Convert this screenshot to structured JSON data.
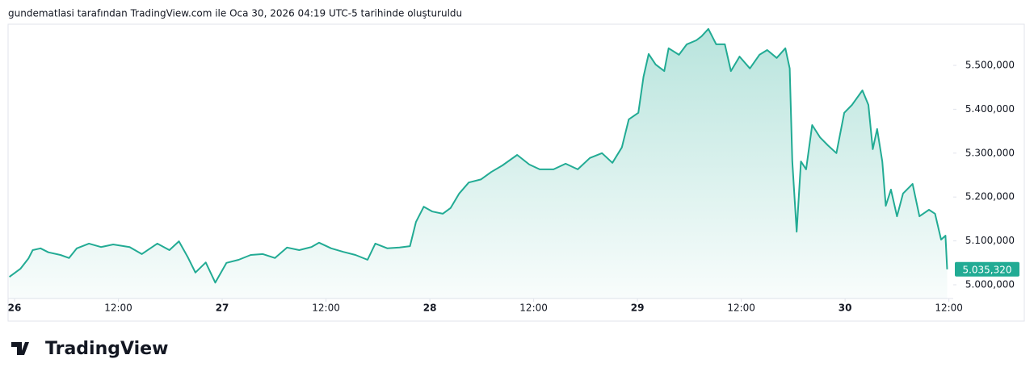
{
  "source": "gundematlasi tarafından TradingView.com ile Oca 30, 2026 04:19 UTC-5 tarihinde oluşturuldu",
  "brand": "TradingView",
  "chart_data": {
    "type": "area",
    "x": [
      -0.6,
      0.7,
      1.6,
      2.1,
      3.0,
      3.9,
      5.3,
      6.3,
      7.2,
      8.6,
      10.0,
      11.4,
      13.3,
      14.7,
      16.5,
      17.9,
      19.0,
      20.0,
      20.9,
      22.1,
      23.2,
      24.5,
      25.9,
      27.3,
      28.7,
      30.1,
      31.5,
      32.9,
      34.3,
      35.2,
      36.6,
      38.0,
      39.4,
      40.8,
      41.7,
      43.1,
      44.5,
      45.7,
      46.4,
      47.3,
      48.3,
      49.5,
      50.4,
      51.4,
      52.5,
      53.9,
      55.1,
      56.4,
      58.1,
      59.5,
      60.7,
      62.3,
      63.7,
      65.1,
      66.5,
      67.9,
      69.1,
      70.2,
      71.0,
      72.1,
      72.7,
      73.3,
      74.1,
      75.1,
      75.6,
      76.8,
      77.7,
      78.8,
      79.4,
      80.2,
      81.1,
      82.1,
      82.8,
      83.8,
      85.0,
      86.1,
      87.0,
      88.1,
      89.1,
      89.6,
      89.9,
      90.4,
      90.9,
      91.5,
      92.2,
      93.1,
      94.0,
      95.0,
      95.9,
      96.8,
      98.0,
      98.7,
      99.2,
      99.7,
      100.3,
      100.7,
      101.3,
      102.0,
      102.7,
      103.8,
      104.6,
      105.7,
      106.4,
      107.1,
      107.6,
      107.8
    ],
    "series": [
      {
        "color": "#22ab94",
        "values": [
          5018000,
          5037000,
          5060000,
          5079000,
          5083000,
          5074000,
          5068000,
          5061000,
          5083000,
          5094000,
          5086000,
          5092000,
          5086000,
          5070000,
          5094000,
          5079000,
          5099000,
          5064000,
          5028000,
          5051000,
          5005000,
          5050000,
          5057000,
          5068000,
          5070000,
          5061000,
          5085000,
          5079000,
          5086000,
          5096000,
          5083000,
          5075000,
          5068000,
          5057000,
          5094000,
          5083000,
          5085000,
          5088000,
          5143000,
          5178000,
          5167000,
          5162000,
          5175000,
          5208000,
          5233000,
          5240000,
          5257000,
          5272000,
          5296000,
          5274000,
          5263000,
          5263000,
          5276000,
          5263000,
          5289000,
          5300000,
          5278000,
          5313000,
          5377000,
          5392000,
          5474000,
          5526000,
          5502000,
          5487000,
          5539000,
          5524000,
          5548000,
          5557000,
          5566000,
          5583000,
          5548000,
          5548000,
          5487000,
          5520000,
          5493000,
          5524000,
          5535000,
          5517000,
          5539000,
          5493000,
          5281000,
          5121000,
          5281000,
          5263000,
          5364000,
          5336000,
          5318000,
          5300000,
          5392000,
          5410000,
          5443000,
          5410000,
          5309000,
          5355000,
          5281000,
          5180000,
          5217000,
          5156000,
          5208000,
          5230000,
          5156000,
          5171000,
          5162000,
          5103000,
          5112000,
          5035320
        ]
      }
    ],
    "last_label": {
      "value": 5035320,
      "label": "5.035,320"
    },
    "xlim": [
      -0.75,
      108.5
    ],
    "xticks": [
      {
        "value": 0,
        "label": "26"
      },
      {
        "value": 12,
        "label": "12:00"
      },
      {
        "value": 24,
        "label": "27"
      },
      {
        "value": 36,
        "label": "12:00"
      },
      {
        "value": 48,
        "label": "28"
      },
      {
        "value": 60,
        "label": "12:00"
      },
      {
        "value": 72,
        "label": "29"
      },
      {
        "value": 84,
        "label": "12:00"
      },
      {
        "value": 96,
        "label": "30"
      },
      {
        "value": 108,
        "label": "12:00"
      }
    ],
    "ylim": [
      4968750,
      5593750
    ],
    "yticks": [
      {
        "value": 5000000,
        "label": "5.000,000"
      },
      {
        "value": 5100000,
        "label": "5.100,000"
      },
      {
        "value": 5200000,
        "label": "5.200,000"
      },
      {
        "value": 5300000,
        "label": "5.300,000"
      },
      {
        "value": 5400000,
        "label": "5.400,000"
      },
      {
        "value": 5500000,
        "label": "5.500,000"
      }
    ]
  }
}
